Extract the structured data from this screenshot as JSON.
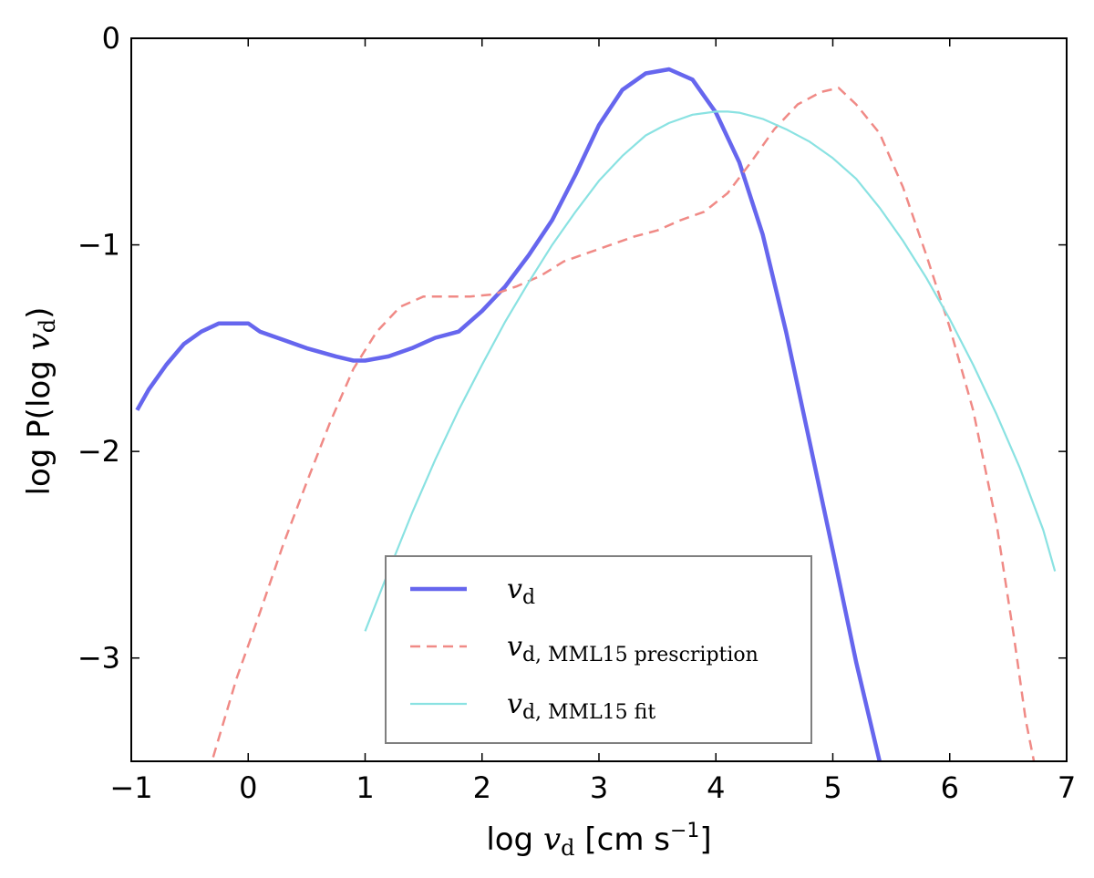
{
  "chart_data": {
    "type": "line",
    "xlabel": {
      "prefix": "log ",
      "var": "v",
      "sub": "d",
      "suffix": " [cm s",
      "sup": "−1",
      "close": "]"
    },
    "ylabel": {
      "prefix": "log P(log ",
      "var": "v",
      "sub": "d",
      "close": ")"
    },
    "xlim": [
      -1,
      7
    ],
    "ylim": [
      -3.5,
      0
    ],
    "xticks": [
      -1,
      0,
      1,
      2,
      3,
      4,
      5,
      6,
      7
    ],
    "xtick_labels": [
      "−1",
      "0",
      "1",
      "2",
      "3",
      "4",
      "5",
      "6",
      "7"
    ],
    "yticks": [
      -3,
      -2,
      -1,
      0
    ],
    "ytick_labels": [
      "−3",
      "−2",
      "−1",
      "0"
    ],
    "grid": false,
    "legend_position": "lower-center",
    "series": [
      {
        "name": "v_d",
        "legend": {
          "var": "v",
          "sub": "d"
        },
        "color": "#6666ee",
        "style": "solid",
        "width": 4.5,
        "x": [
          -0.95,
          -0.85,
          -0.7,
          -0.55,
          -0.4,
          -0.25,
          -0.2,
          0.0,
          0.1,
          0.3,
          0.5,
          0.75,
          0.9,
          1.0,
          1.2,
          1.4,
          1.6,
          1.8,
          2.0,
          2.2,
          2.4,
          2.6,
          2.8,
          3.0,
          3.2,
          3.4,
          3.6,
          3.8,
          4.0,
          4.2,
          4.4,
          4.6,
          4.8,
          5.0,
          5.2,
          5.4
        ],
        "y": [
          -1.8,
          -1.7,
          -1.58,
          -1.48,
          -1.42,
          -1.38,
          -1.38,
          -1.38,
          -1.42,
          -1.46,
          -1.5,
          -1.54,
          -1.56,
          -1.56,
          -1.54,
          -1.5,
          -1.45,
          -1.42,
          -1.32,
          -1.2,
          -1.05,
          -0.88,
          -0.66,
          -0.42,
          -0.25,
          -0.17,
          -0.15,
          -0.2,
          -0.36,
          -0.6,
          -0.95,
          -1.42,
          -1.95,
          -2.48,
          -3.02,
          -3.5
        ]
      },
      {
        "name": "v_d, MML15 prescription",
        "legend": {
          "var": "v",
          "sub": "d, MML15 prescription"
        },
        "color": "#f08a86",
        "style": "dashed",
        "width": 2.5,
        "x": [
          -0.3,
          -0.1,
          0.1,
          0.3,
          0.5,
          0.7,
          0.9,
          1.1,
          1.3,
          1.5,
          1.7,
          1.9,
          2.1,
          2.3,
          2.5,
          2.7,
          2.9,
          3.1,
          3.3,
          3.5,
          3.7,
          3.9,
          4.1,
          4.3,
          4.5,
          4.7,
          4.9,
          5.05,
          5.2,
          5.4,
          5.6,
          5.8,
          6.0,
          6.2,
          6.4,
          6.55,
          6.65,
          6.72
        ],
        "y": [
          -3.48,
          -3.1,
          -2.78,
          -2.45,
          -2.15,
          -1.86,
          -1.6,
          -1.42,
          -1.3,
          -1.25,
          -1.25,
          -1.25,
          -1.24,
          -1.2,
          -1.15,
          -1.08,
          -1.04,
          -1.0,
          -0.96,
          -0.93,
          -0.88,
          -0.84,
          -0.75,
          -0.6,
          -0.44,
          -0.32,
          -0.26,
          -0.24,
          -0.32,
          -0.46,
          -0.72,
          -1.05,
          -1.4,
          -1.8,
          -2.35,
          -2.9,
          -3.3,
          -3.5
        ]
      },
      {
        "name": "v_d, MML15 fit",
        "legend": {
          "var": "v",
          "sub": "d, MML15 fit"
        },
        "color": "#8ae2e2",
        "style": "solid",
        "width": 2.2,
        "x": [
          1.0,
          1.2,
          1.4,
          1.6,
          1.8,
          2.0,
          2.2,
          2.4,
          2.6,
          2.8,
          3.0,
          3.2,
          3.4,
          3.6,
          3.8,
          4.0,
          4.1,
          4.2,
          4.4,
          4.6,
          4.8,
          5.0,
          5.2,
          5.4,
          5.6,
          5.8,
          6.0,
          6.2,
          6.4,
          6.6,
          6.8,
          6.9
        ],
        "y": [
          -2.87,
          -2.58,
          -2.3,
          -2.04,
          -1.8,
          -1.58,
          -1.37,
          -1.18,
          -1.0,
          -0.84,
          -0.69,
          -0.57,
          -0.47,
          -0.41,
          -0.37,
          -0.355,
          -0.355,
          -0.36,
          -0.39,
          -0.44,
          -0.5,
          -0.58,
          -0.68,
          -0.82,
          -0.98,
          -1.16,
          -1.36,
          -1.58,
          -1.82,
          -2.08,
          -2.38,
          -2.58
        ]
      }
    ]
  }
}
